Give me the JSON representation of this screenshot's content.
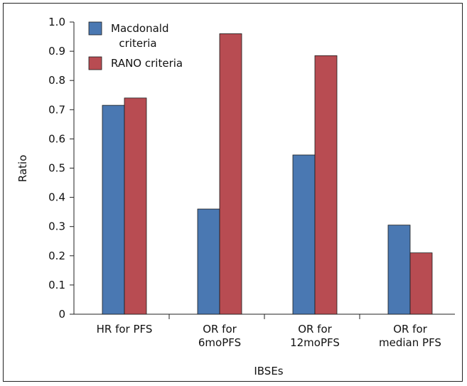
{
  "chart_data": {
    "type": "bar",
    "categories": [
      [
        "HR for PFS"
      ],
      [
        "OR for",
        "6moPFS"
      ],
      [
        "OR for",
        "12moPFS"
      ],
      [
        "OR for",
        "median PFS"
      ]
    ],
    "series": [
      {
        "name": [
          "Macdonald",
          "criteria"
        ],
        "color": "#4a78b2",
        "values": [
          0.715,
          0.36,
          0.545,
          0.305
        ]
      },
      {
        "name": [
          "RANO criteria"
        ],
        "color": "#b84c52",
        "values": [
          0.74,
          0.96,
          0.885,
          0.21
        ]
      }
    ],
    "xlabel": "IBSEs",
    "ylabel": "Ratio",
    "ylim": [
      0,
      1.0
    ],
    "yticks": [
      "0",
      "0.1",
      "0.2",
      "0.3",
      "0.4",
      "0.5",
      "0.6",
      "0.7",
      "0.8",
      "0.9",
      "1.0"
    ],
    "legend_position": "top-left",
    "grid": false
  }
}
